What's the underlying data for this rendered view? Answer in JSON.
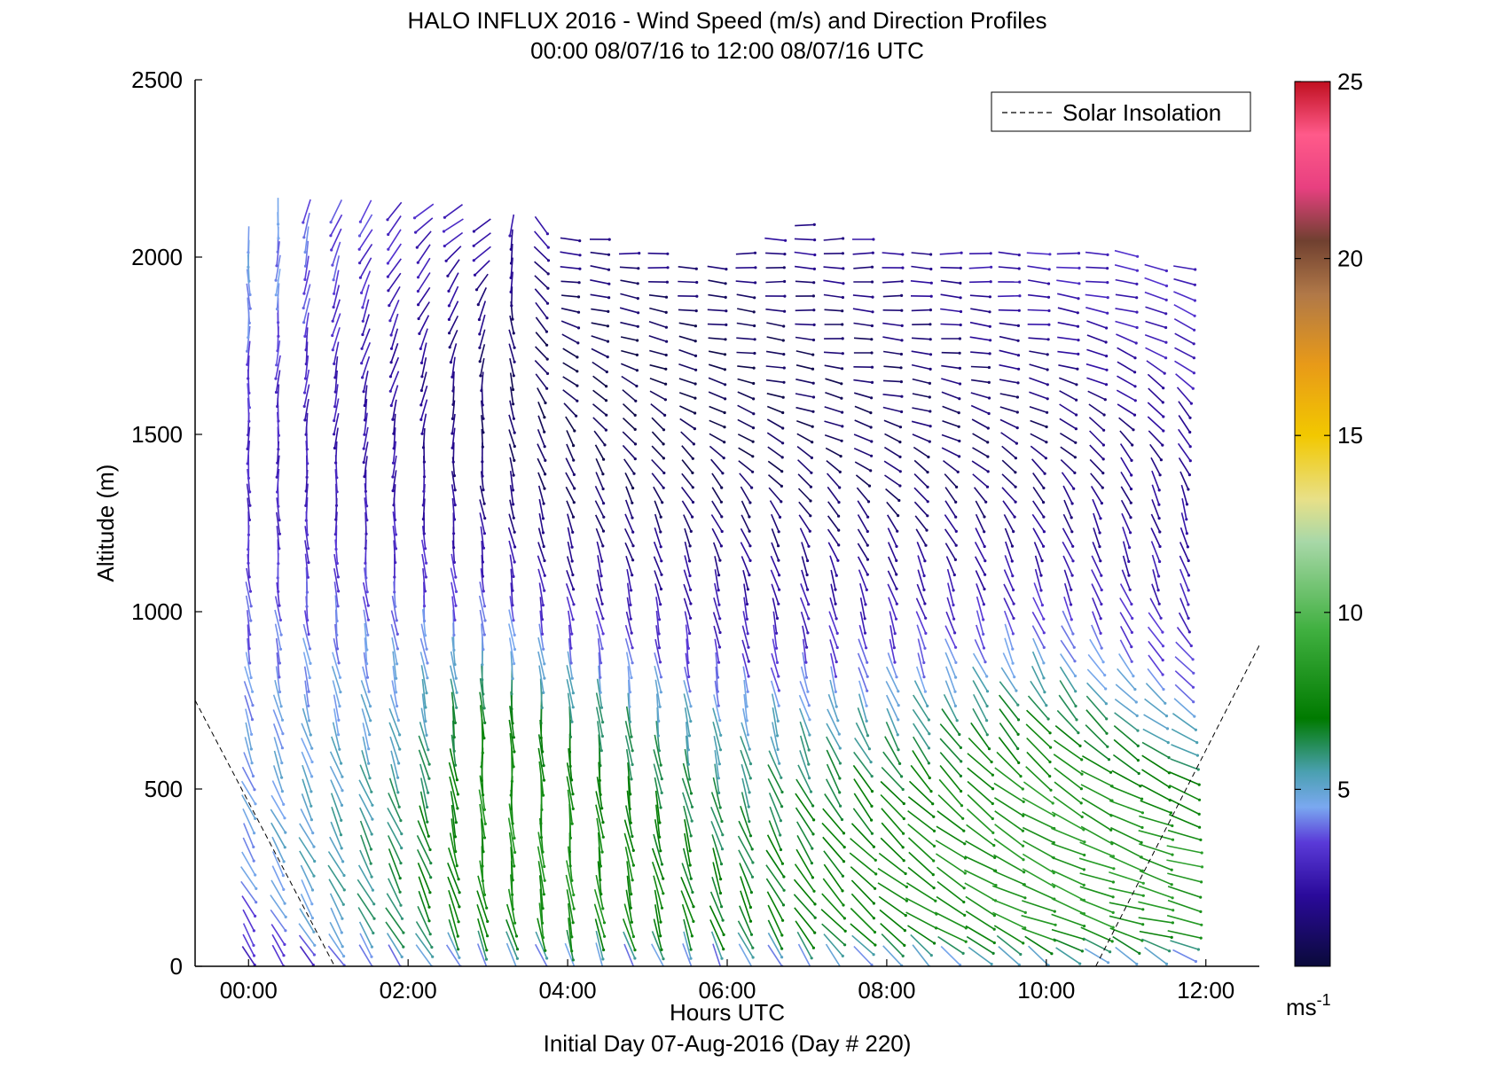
{
  "chart_data": {
    "type": "quiver",
    "title": "HALO INFLUX 2016 - Wind Speed (m/s) and Direction Profiles",
    "subtitle": "00:00 08/07/16 to 12:00 08/07/16  UTC",
    "xlabel": "Hours UTC",
    "footer": "Initial Day 07-Aug-2016 (Day # 220)",
    "ylabel": "Altitude (m)",
    "xlim": [
      -0.67,
      12.67
    ],
    "ylim": [
      0,
      2500
    ],
    "x_ticks": [
      0,
      2,
      4,
      6,
      8,
      10,
      12
    ],
    "x_tick_labels": [
      "00:00",
      "02:00",
      "04:00",
      "06:00",
      "08:00",
      "10:00",
      "12:00"
    ],
    "y_ticks": [
      0,
      500,
      1000,
      1500,
      2000,
      2500
    ],
    "y_tick_labels": [
      "0",
      "500",
      "1000",
      "1500",
      "2000",
      "2500"
    ],
    "legend": {
      "entry": "Solar Insolation",
      "style": "dashed",
      "placement": "top-right"
    },
    "colorbar": {
      "range": [
        0,
        25
      ],
      "ticks": [
        5,
        10,
        15,
        20,
        25
      ],
      "tick_labels": [
        "5",
        "10",
        "15",
        "20",
        "25"
      ],
      "units_base": "ms",
      "units_exp": "-1",
      "colors": [
        "#0a0a3a",
        "#2a0a9a",
        "#5a3ad8",
        "#7aa8f0",
        "#4aa0b0",
        "#007a00",
        "#40b040",
        "#a8d8a8",
        "#e8e088",
        "#f2c800",
        "#e89a18",
        "#b07848",
        "#704030",
        "#e84080",
        "#ff5a8a",
        "#c01020"
      ],
      "color_stops": [
        0,
        2,
        3.5,
        4.5,
        5.5,
        7,
        9.5,
        12,
        13.2,
        15,
        17,
        19,
        20.5,
        22,
        23.5,
        25
      ]
    },
    "solar_insolation": [
      {
        "x": [
          -0.67,
          1.08
        ],
        "y": [
          750,
          0
        ]
      },
      {
        "x": [
          10.62,
          12.67
        ],
        "y": [
          0,
          905
        ]
      }
    ],
    "profile_times": [
      0,
      0.37,
      0.73,
      1.1,
      1.47,
      1.83,
      2.2,
      2.57,
      2.93,
      3.3,
      3.67,
      4.03,
      4.4,
      4.77,
      5.13,
      5.5,
      5.87,
      6.23,
      6.6,
      6.97,
      7.33,
      7.7,
      8.07,
      8.43,
      8.8,
      9.17,
      9.53,
      9.9,
      10.27,
      10.63,
      11,
      11.37,
      11.73
    ],
    "profile_top_altitudes": [
      2080,
      2160,
      2160,
      2150,
      2150,
      2150,
      2140,
      2140,
      2110,
      2100,
      2090,
      2080,
      2070,
      2040,
      2020,
      2000,
      1990,
      2010,
      2060,
      2090,
      2080,
      2060,
      2040,
      2030,
      2030,
      2030,
      2020,
      2020,
      2030,
      2030,
      2010,
      2000,
      2000
    ],
    "barb_altitudes": [
      30,
      60,
      90,
      130,
      170,
      210,
      250,
      290,
      330,
      370,
      410,
      450,
      490,
      530,
      570,
      610,
      650,
      690,
      730,
      770,
      810,
      850,
      890,
      930,
      970,
      1010,
      1050,
      1090,
      1130,
      1170,
      1210,
      1250,
      1290,
      1330,
      1370,
      1410,
      1450,
      1490,
      1530,
      1570,
      1610,
      1650,
      1690,
      1730,
      1770,
      1810,
      1850,
      1890,
      1930,
      1970,
      2010,
      2050,
      2090,
      2130
    ],
    "speed_field": {
      "units": "m/s",
      "time_knots": [
        0,
        2,
        3,
        4,
        6,
        8,
        10,
        12
      ],
      "altitude_knots": [
        0,
        100,
        300,
        500,
        700,
        900,
        1100,
        1300,
        1500,
        1700,
        1900,
        2100
      ],
      "values": [
        [
          2.5,
          3.5,
          4.5,
          4.5,
          4.5,
          4.0,
          3.5,
          3.0,
          3.0,
          3.5,
          4.5,
          4.5
        ],
        [
          3.5,
          6.5,
          6.5,
          6.0,
          5.0,
          4.5,
          3.5,
          2.5,
          2.0,
          2.0,
          2.5,
          3.0
        ],
        [
          3.0,
          7.5,
          8.0,
          8.0,
          7.5,
          5.0,
          3.0,
          1.5,
          1.0,
          1.0,
          1.5,
          2.5
        ],
        [
          3.0,
          8.0,
          8.0,
          7.5,
          6.5,
          4.0,
          2.0,
          1.0,
          0.5,
          0.5,
          1.0,
          2.0
        ],
        [
          3.0,
          7.0,
          6.5,
          6.0,
          5.0,
          3.0,
          2.0,
          1.0,
          0.5,
          0.5,
          1.0,
          2.0
        ],
        [
          3.5,
          7.5,
          7.5,
          7.0,
          5.5,
          3.5,
          2.0,
          1.0,
          1.0,
          1.0,
          1.5,
          2.0
        ],
        [
          4.0,
          8.5,
          8.5,
          8.5,
          7.0,
          4.5,
          2.5,
          1.5,
          1.0,
          1.5,
          2.5,
          3.0
        ],
        [
          3.0,
          8.0,
          8.5,
          7.0,
          4.5,
          3.0,
          2.5,
          2.0,
          2.0,
          3.0,
          3.0,
          3.0
        ]
      ]
    },
    "direction_field": {
      "units": "degrees, direction the wind blows toward, clockwise from north",
      "time_knots": [
        0,
        2,
        3,
        4,
        6,
        8,
        10,
        12
      ],
      "altitude_knots": [
        0,
        100,
        300,
        500,
        700,
        900,
        1100,
        1300,
        1500,
        1700,
        1900,
        2100
      ],
      "values": [
        [
          145,
          150,
          150,
          155,
          165,
          170,
          175,
          178,
          180,
          182,
          178,
          175
        ],
        [
          145,
          150,
          155,
          160,
          165,
          170,
          175,
          180,
          190,
          200,
          210,
          225
        ],
        [
          150,
          165,
          175,
          178,
          178,
          175,
          172,
          170,
          175,
          185,
          210,
          240
        ],
        [
          155,
          170,
          175,
          175,
          175,
          170,
          165,
          160,
          150,
          120,
          100,
          90
        ],
        [
          155,
          160,
          160,
          165,
          170,
          170,
          165,
          150,
          120,
          100,
          95,
          90
        ],
        [
          145,
          125,
          130,
          140,
          155,
          165,
          160,
          140,
          110,
          95,
          92,
          90
        ],
        [
          135,
          110,
          115,
          125,
          140,
          155,
          160,
          150,
          120,
          100,
          95,
          90
        ],
        [
          130,
          100,
          105,
          110,
          120,
          140,
          160,
          165,
          150,
          130,
          110,
          100
        ]
      ]
    }
  }
}
